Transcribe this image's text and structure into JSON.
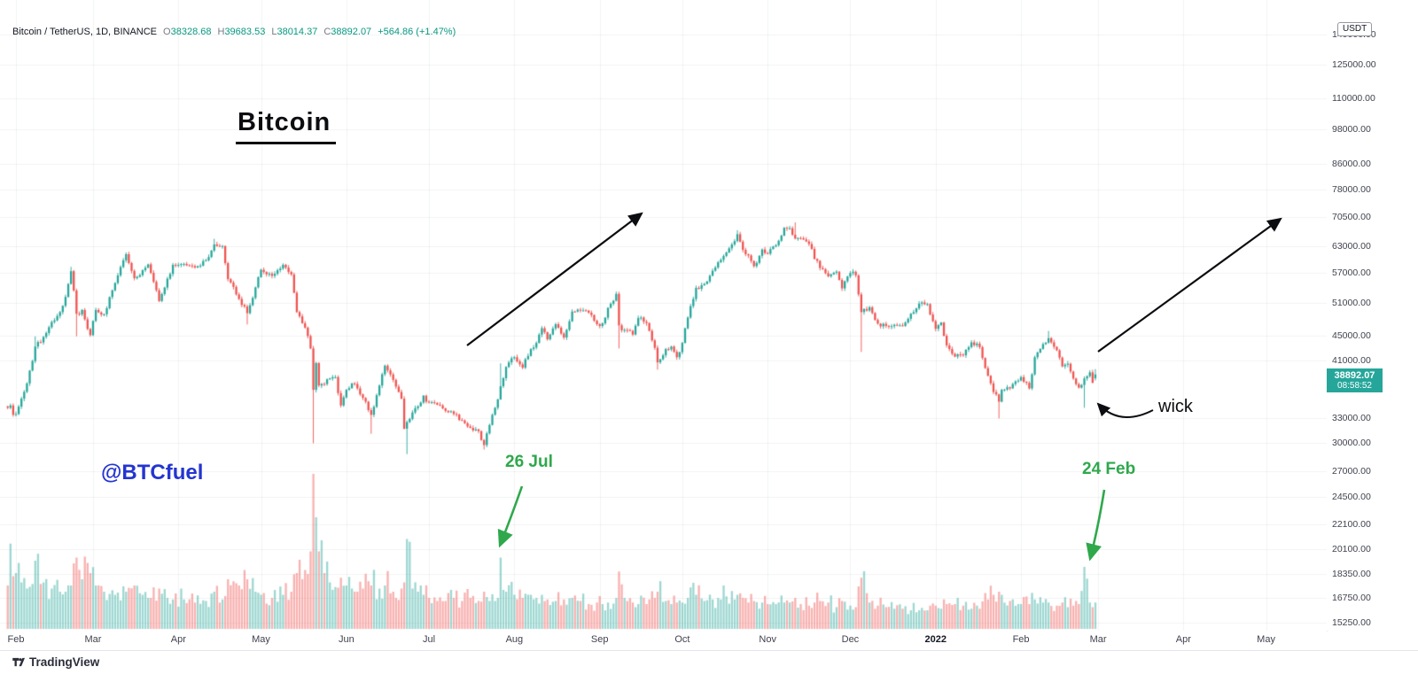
{
  "legend": {
    "symbol_title": "Bitcoin / TetherUS, 1D, BINANCE",
    "o_label": "O",
    "open": "38328.68",
    "h_label": "H",
    "high": "39683.53",
    "l_label": "L",
    "low": "38014.37",
    "c_label": "C",
    "close": "38892.07",
    "change": "+564.86 (+1.47%)"
  },
  "annotations": {
    "title": "Bitcoin",
    "handle": "@BTCfuel",
    "event_jul": "26 Jul",
    "event_feb": "24 Feb",
    "wick": "wick"
  },
  "price_axis": {
    "currency_button": "USDT",
    "ticks": [
      "140000.00",
      "125000.00",
      "110000.00",
      "98000.00",
      "86000.00",
      "78000.00",
      "70500.00",
      "63000.00",
      "57000.00",
      "51000.00",
      "45000.00",
      "41000.00",
      "33000.00",
      "30000.00",
      "27000.00",
      "24500.00",
      "22100.00",
      "20100.00",
      "18350.00",
      "16750.00",
      "15250.00"
    ],
    "last_price": "38892.07",
    "countdown": "08:58:52"
  },
  "time_axis": {
    "ticks": [
      {
        "label": "Feb",
        "day": 0
      },
      {
        "label": "Mar",
        "day": 28
      },
      {
        "label": "Apr",
        "day": 59
      },
      {
        "label": "May",
        "day": 89
      },
      {
        "label": "Jun",
        "day": 120
      },
      {
        "label": "Jul",
        "day": 150
      },
      {
        "label": "Aug",
        "day": 181
      },
      {
        "label": "Sep",
        "day": 212
      },
      {
        "label": "Oct",
        "day": 242
      },
      {
        "label": "Nov",
        "day": 273
      },
      {
        "label": "Dec",
        "day": 303
      },
      {
        "label": "2022",
        "day": 334,
        "year": true
      },
      {
        "label": "Feb",
        "day": 365
      },
      {
        "label": "Mar",
        "day": 393
      },
      {
        "label": "Apr",
        "day": 424
      },
      {
        "label": "May",
        "day": 454
      }
    ]
  },
  "footer": {
    "logo_text": "TradingView"
  },
  "colors": {
    "up": "#26a69a",
    "down": "#ef5350",
    "volume_up": "#26a69a73",
    "volume_down": "#ef535073",
    "badge": "#26a69a",
    "annotation_green": "#2fa84c",
    "annotation_blue": "#2435d1",
    "annotation_black": "#0c0d10"
  },
  "chart_data": {
    "type": "candlestick",
    "symbol": "Bitcoin / TetherUS",
    "interval": "1D",
    "exchange": "BINANCE",
    "scale": "logarithmic",
    "ylim": [
      15250,
      140000
    ],
    "x_range": [
      "Feb 2021",
      "May 2022"
    ],
    "legend_position": "top-left",
    "grid": true,
    "volume_pane": true,
    "keypoint_format": "[day_offset_from_2021-02-01, close, relative_volume_0to1, low_override?, high_override?]",
    "keypoints": [
      [
        -3,
        34300,
        0.28
      ],
      [
        -2,
        34600,
        0.55
      ],
      [
        -1,
        33400,
        0.34
      ],
      [
        0,
        33500,
        0.36
      ],
      [
        2,
        35500,
        0.3
      ],
      [
        4,
        37600,
        0.26
      ],
      [
        7,
        43200,
        0.44,
        null,
        44900
      ],
      [
        10,
        44800,
        0.3
      ],
      [
        13,
        47400,
        0.26
      ],
      [
        16,
        49200,
        0.24
      ],
      [
        18,
        52100,
        0.24
      ],
      [
        20,
        57400,
        0.28,
        null,
        58350
      ],
      [
        22,
        48900,
        0.46,
        44900
      ],
      [
        24,
        49600,
        0.32
      ],
      [
        27,
        45100,
        0.36
      ],
      [
        29,
        49600,
        0.28
      ],
      [
        32,
        48800,
        0.24
      ],
      [
        36,
        54900,
        0.22
      ],
      [
        40,
        61200,
        0.24
      ],
      [
        43,
        55900,
        0.28
      ],
      [
        46,
        57600,
        0.22
      ],
      [
        48,
        58900,
        0.2
      ],
      [
        52,
        51300,
        0.26
      ],
      [
        55,
        55800,
        0.2
      ],
      [
        57,
        58800,
        0.19
      ],
      [
        61,
        59000,
        0.19
      ],
      [
        65,
        58200,
        0.17
      ],
      [
        69,
        59800,
        0.18
      ],
      [
        72,
        63500,
        0.24,
        null,
        64850
      ],
      [
        75,
        63100,
        0.19
      ],
      [
        77,
        55700,
        0.32
      ],
      [
        81,
        51700,
        0.28
      ],
      [
        84,
        49000,
        0.32,
        46950
      ],
      [
        87,
        54000,
        0.24
      ],
      [
        89,
        57700,
        0.22
      ],
      [
        93,
        56400,
        0.2
      ],
      [
        97,
        58800,
        0.22
      ],
      [
        100,
        56700,
        0.24
      ],
      [
        102,
        49200,
        0.36
      ],
      [
        105,
        46400,
        0.38
      ],
      [
        107,
        42900,
        0.5
      ],
      [
        108,
        36700,
        1.0,
        30000
      ],
      [
        109,
        40600,
        0.72
      ],
      [
        110,
        37300,
        0.5
      ],
      [
        112,
        37500,
        0.36
      ],
      [
        114,
        38300,
        0.3
      ],
      [
        116,
        38500,
        0.27
      ],
      [
        118,
        34600,
        0.33
      ],
      [
        120,
        36700,
        0.28
      ],
      [
        122,
        37600,
        0.26
      ],
      [
        124,
        36900,
        0.24
      ],
      [
        126,
        35600,
        0.26
      ],
      [
        129,
        33400,
        0.28,
        31100
      ],
      [
        132,
        37300,
        0.26
      ],
      [
        134,
        40200,
        0.28
      ],
      [
        137,
        38100,
        0.24
      ],
      [
        140,
        35500,
        0.26
      ],
      [
        141,
        31700,
        0.3
      ],
      [
        142,
        32500,
        0.58,
        28800
      ],
      [
        144,
        33700,
        0.26
      ],
      [
        146,
        34500,
        0.24
      ],
      [
        148,
        35900,
        0.22
      ],
      [
        150,
        35000,
        0.2
      ],
      [
        153,
        34700,
        0.18
      ],
      [
        156,
        33900,
        0.18
      ],
      [
        159,
        33500,
        0.2
      ],
      [
        162,
        32700,
        0.18
      ],
      [
        165,
        31800,
        0.2
      ],
      [
        168,
        31400,
        0.18
      ],
      [
        170,
        29800,
        0.24,
        29300
      ],
      [
        172,
        32150,
        0.18
      ],
      [
        174,
        34300,
        0.18
      ],
      [
        175,
        35400,
        0.2
      ],
      [
        176,
        37200,
        0.46,
        null,
        40550
      ],
      [
        178,
        40000,
        0.24
      ],
      [
        181,
        41500,
        0.22
      ],
      [
        184,
        39900,
        0.2
      ],
      [
        187,
        42800,
        0.22
      ],
      [
        189,
        43800,
        0.2
      ],
      [
        191,
        46300,
        0.22
      ],
      [
        193,
        44400,
        0.19
      ],
      [
        196,
        47000,
        0.18
      ],
      [
        199,
        44700,
        0.19
      ],
      [
        202,
        49300,
        0.2
      ],
      [
        205,
        49500,
        0.18
      ],
      [
        208,
        49100,
        0.16
      ],
      [
        211,
        47000,
        0.17
      ],
      [
        213,
        47150,
        0.16
      ],
      [
        215,
        50000,
        0.17
      ],
      [
        218,
        52700,
        0.2
      ],
      [
        219,
        46800,
        0.37,
        42900
      ],
      [
        221,
        46000,
        0.2
      ],
      [
        224,
        45200,
        0.17
      ],
      [
        226,
        48100,
        0.16
      ],
      [
        229,
        47200,
        0.16
      ],
      [
        232,
        43000,
        0.2
      ],
      [
        233,
        40700,
        0.24,
        39600
      ],
      [
        236,
        42800,
        0.18
      ],
      [
        238,
        43200,
        0.16
      ],
      [
        240,
        41500,
        0.17
      ],
      [
        242,
        43800,
        0.17
      ],
      [
        244,
        48200,
        0.2
      ],
      [
        247,
        53900,
        0.22
      ],
      [
        250,
        54700,
        0.18
      ],
      [
        253,
        57500,
        0.19
      ],
      [
        256,
        59900,
        0.19
      ],
      [
        258,
        61600,
        0.21
      ],
      [
        261,
        64300,
        0.19
      ],
      [
        262,
        66000,
        0.22,
        null,
        67000
      ],
      [
        264,
        62200,
        0.2
      ],
      [
        266,
        60900,
        0.17
      ],
      [
        268,
        58500,
        0.18
      ],
      [
        271,
        62300,
        0.17
      ],
      [
        273,
        61300,
        0.16
      ],
      [
        276,
        63300,
        0.16
      ],
      [
        279,
        67600,
        0.17
      ],
      [
        281,
        67500,
        0.17
      ],
      [
        283,
        64900,
        0.2,
        null,
        69000
      ],
      [
        285,
        65000,
        0.16
      ],
      [
        288,
        63600,
        0.15
      ],
      [
        290,
        60100,
        0.17
      ],
      [
        292,
        58100,
        0.18
      ],
      [
        295,
        56300,
        0.17
      ],
      [
        298,
        57300,
        0.14
      ],
      [
        300,
        53800,
        0.18
      ],
      [
        303,
        57000,
        0.15
      ],
      [
        305,
        56500,
        0.14
      ],
      [
        307,
        49200,
        0.33,
        42330
      ],
      [
        310,
        50100,
        0.17
      ],
      [
        313,
        47100,
        0.15
      ],
      [
        316,
        46700,
        0.14
      ],
      [
        319,
        46900,
        0.13
      ],
      [
        322,
        46700,
        0.13
      ],
      [
        325,
        48900,
        0.12
      ],
      [
        328,
        50800,
        0.12
      ],
      [
        331,
        50700,
        0.12
      ],
      [
        334,
        46200,
        0.15
      ],
      [
        336,
        47300,
        0.13
      ],
      [
        338,
        43400,
        0.16
      ],
      [
        341,
        41600,
        0.16
      ],
      [
        344,
        41800,
        0.15
      ],
      [
        347,
        43900,
        0.13
      ],
      [
        350,
        43100,
        0.13
      ],
      [
        353,
        38700,
        0.19
      ],
      [
        355,
        36400,
        0.22
      ],
      [
        357,
        35100,
        0.24,
        32950
      ],
      [
        358,
        36700,
        0.22
      ],
      [
        361,
        36900,
        0.18
      ],
      [
        364,
        38000,
        0.16
      ],
      [
        365,
        38500,
        0.16
      ],
      [
        368,
        36900,
        0.16
      ],
      [
        370,
        41500,
        0.19
      ],
      [
        373,
        43600,
        0.17
      ],
      [
        375,
        44600,
        0.17,
        null,
        45820
      ],
      [
        378,
        42600,
        0.15
      ],
      [
        380,
        40100,
        0.17
      ],
      [
        382,
        40500,
        0.14
      ],
      [
        384,
        38300,
        0.15
      ],
      [
        386,
        37000,
        0.16
      ],
      [
        388,
        38300,
        0.4,
        34300
      ],
      [
        390,
        39200,
        0.17
      ],
      [
        391,
        37700,
        0.14
      ],
      [
        392,
        38892.07,
        0.17
      ]
    ],
    "last_candle": {
      "o": 38328.68,
      "h": 39683.53,
      "l": 38014.37,
      "c": 38892.07
    },
    "marked_events": [
      "26 Jul volume spike",
      "24 Feb volume spike",
      "wick on 24 Feb candle low"
    ]
  }
}
